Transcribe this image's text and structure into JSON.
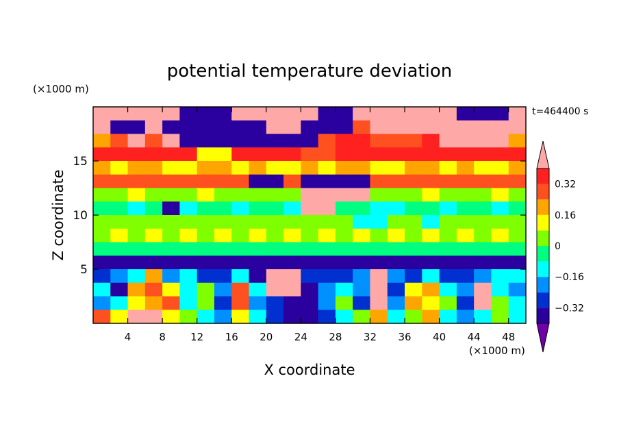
{
  "chart_data": {
    "type": "heatmap",
    "title": "potential temperature deviation",
    "xlabel": "X coordinate",
    "ylabel": "Z coordinate",
    "x_unit": "(×1000 m)",
    "y_unit": "(×1000 m)",
    "time_label": "t=464400 s",
    "xlim": [
      0,
      50
    ],
    "ylim": [
      0,
      20
    ],
    "x_ticks": [
      4,
      8,
      12,
      16,
      20,
      24,
      28,
      32,
      36,
      40,
      44,
      48
    ],
    "y_ticks": [
      5,
      10,
      15
    ],
    "colorbar": {
      "levels": [
        -0.4,
        -0.32,
        -0.24,
        -0.16,
        -0.08,
        0,
        0.08,
        0.16,
        0.24,
        0.32,
        0.4
      ],
      "tick_values": [
        -0.32,
        -0.16,
        0,
        0.16,
        0.32
      ],
      "tick_labels": [
        "−0.32",
        "−0.16",
        "0",
        "0.16",
        "0.32"
      ],
      "colors": [
        "#7000a8",
        "#2a009e",
        "#0030d0",
        "#0090ff",
        "#00ffff",
        "#00ff80",
        "#80ff00",
        "#ffff00",
        "#ffa500",
        "#ff5020",
        "#ff2020",
        "#ffa8a8"
      ],
      "extend": "both"
    },
    "rows_note": "field values sampled on a coarse grid (z from top to bottom, x from left to right)",
    "grid_x": 25,
    "grid_z": 16,
    "field": [
      [
        0.45,
        0.45,
        0.45,
        0.45,
        0.45,
        -0.4,
        -0.4,
        -0.4,
        0.45,
        0.45,
        0.45,
        0.45,
        0.45,
        -0.4,
        -0.4,
        0.45,
        0.45,
        0.45,
        0.45,
        0.45,
        0.45,
        -0.4,
        -0.4,
        -0.4,
        0.45
      ],
      [
        0.45,
        -0.4,
        -0.4,
        0.45,
        -0.4,
        -0.4,
        -0.4,
        -0.4,
        -0.4,
        -0.4,
        0.45,
        0.45,
        -0.4,
        -0.4,
        -0.4,
        0.3,
        0.45,
        0.45,
        0.45,
        0.45,
        0.45,
        0.45,
        0.45,
        0.45,
        0.45
      ],
      [
        0.2,
        0.3,
        0.45,
        0.3,
        0.45,
        -0.4,
        -0.4,
        -0.4,
        -0.4,
        -0.4,
        -0.4,
        -0.4,
        -0.4,
        0.3,
        0.35,
        0.35,
        0.3,
        0.3,
        0.3,
        0.35,
        0.45,
        0.45,
        0.45,
        0.45,
        0.2
      ],
      [
        0.33,
        0.33,
        0.33,
        0.36,
        0.33,
        0.33,
        0.1,
        0.1,
        0.33,
        0.33,
        0.33,
        0.33,
        0.3,
        0.3,
        0.33,
        0.33,
        0.33,
        0.33,
        0.33,
        0.33,
        0.33,
        0.33,
        0.33,
        0.33,
        0.33
      ],
      [
        0.2,
        0.15,
        0.2,
        0.18,
        0.12,
        0.15,
        0.2,
        0.18,
        0.15,
        0.2,
        0.1,
        0.12,
        0.2,
        0.15,
        0.2,
        0.18,
        0.12,
        0.15,
        0.2,
        0.18,
        0.15,
        0.2,
        0.1,
        0.12,
        0.2
      ],
      [
        0.28,
        0.28,
        0.28,
        0.28,
        0.28,
        0.28,
        0.28,
        0.28,
        0.28,
        -0.4,
        -0.4,
        0.28,
        -0.4,
        -0.4,
        -0.4,
        -0.4,
        0.28,
        0.28,
        0.28,
        0.28,
        0.28,
        0.28,
        0.28,
        0.28,
        0.28
      ],
      [
        0.05,
        0.05,
        0.1,
        0.05,
        0.05,
        0.05,
        0.1,
        0.05,
        0.05,
        0.05,
        0.05,
        0.05,
        0.45,
        0.45,
        0.45,
        0.45,
        0.05,
        0.05,
        0.05,
        0.1,
        0.05,
        0.05,
        0.05,
        0.1,
        0.05
      ],
      [
        -0.05,
        -0.05,
        -0.1,
        -0.05,
        -0.4,
        -0.1,
        -0.05,
        -0.05,
        -0.1,
        -0.05,
        -0.05,
        -0.1,
        0.45,
        0.45,
        -0.05,
        -0.05,
        -0.1,
        -0.1,
        -0.05,
        -0.05,
        -0.1,
        -0.05,
        -0.05,
        -0.1,
        -0.05
      ],
      [
        0.02,
        0.05,
        0.02,
        0.05,
        0.02,
        0.05,
        0.02,
        0.05,
        0.02,
        0.05,
        0.02,
        0.05,
        0.02,
        0.05,
        0.02,
        -0.1,
        -0.1,
        0.05,
        0.02,
        -0.1,
        0.05,
        0.02,
        0.05,
        0.02,
        0.05
      ],
      [
        0.05,
        0.08,
        0.05,
        0.08,
        0.05,
        0.08,
        0.05,
        0.08,
        0.05,
        0.08,
        0.05,
        0.08,
        0.05,
        0.08,
        0.05,
        0.08,
        0.05,
        0.08,
        0.05,
        0.08,
        0.05,
        0.08,
        0.05,
        0.08,
        0.05
      ],
      [
        -0.05,
        -0.05,
        -0.05,
        -0.05,
        -0.05,
        -0.05,
        -0.05,
        -0.05,
        -0.05,
        -0.05,
        -0.05,
        -0.05,
        -0.05,
        -0.05,
        -0.05,
        -0.05,
        -0.05,
        -0.05,
        -0.05,
        -0.05,
        -0.05,
        -0.05,
        -0.05,
        -0.05,
        -0.05
      ],
      [
        -0.4,
        -0.4,
        -0.35,
        -0.4,
        -0.4,
        -0.4,
        -0.4,
        -0.4,
        -0.4,
        -0.4,
        -0.4,
        -0.4,
        -0.4,
        -0.4,
        -0.4,
        -0.4,
        -0.4,
        -0.4,
        -0.4,
        -0.4,
        -0.4,
        -0.4,
        -0.4,
        -0.4,
        -0.4
      ],
      [
        -0.3,
        -0.2,
        -0.1,
        0.2,
        -0.2,
        -0.1,
        -0.3,
        -0.3,
        -0.1,
        -0.4,
        0.45,
        0.45,
        -0.3,
        -0.3,
        -0.3,
        -0.2,
        0.45,
        -0.2,
        -0.3,
        -0.1,
        -0.3,
        -0.3,
        -0.2,
        -0.1,
        -0.1
      ],
      [
        -0.1,
        -0.35,
        0.2,
        0.3,
        0.1,
        -0.1,
        0.0,
        -0.2,
        0.25,
        -0.1,
        0.45,
        0.45,
        -0.35,
        -0.2,
        -0.1,
        -0.2,
        0.45,
        -0.3,
        0.1,
        0.2,
        -0.1,
        -0.2,
        0.45,
        -0.1,
        -0.2
      ],
      [
        -0.2,
        -0.1,
        0.1,
        0.2,
        0.25,
        -0.1,
        0.0,
        -0.3,
        0.3,
        -0.2,
        -0.3,
        -0.35,
        -0.35,
        -0.2,
        0.0,
        -0.3,
        0.45,
        -0.2,
        0.2,
        0.1,
        0.0,
        -0.3,
        0.45,
        0.0,
        -0.1
      ],
      [
        0.3,
        0.1,
        0.45,
        0.45,
        0.1,
        0.0,
        -0.1,
        -0.2,
        0.1,
        -0.1,
        -0.3,
        -0.35,
        -0.35,
        -0.3,
        -0.1,
        0.0,
        0.2,
        -0.1,
        0.0,
        0.2,
        -0.1,
        -0.2,
        -0.1,
        0.0,
        -0.1
      ]
    ]
  }
}
